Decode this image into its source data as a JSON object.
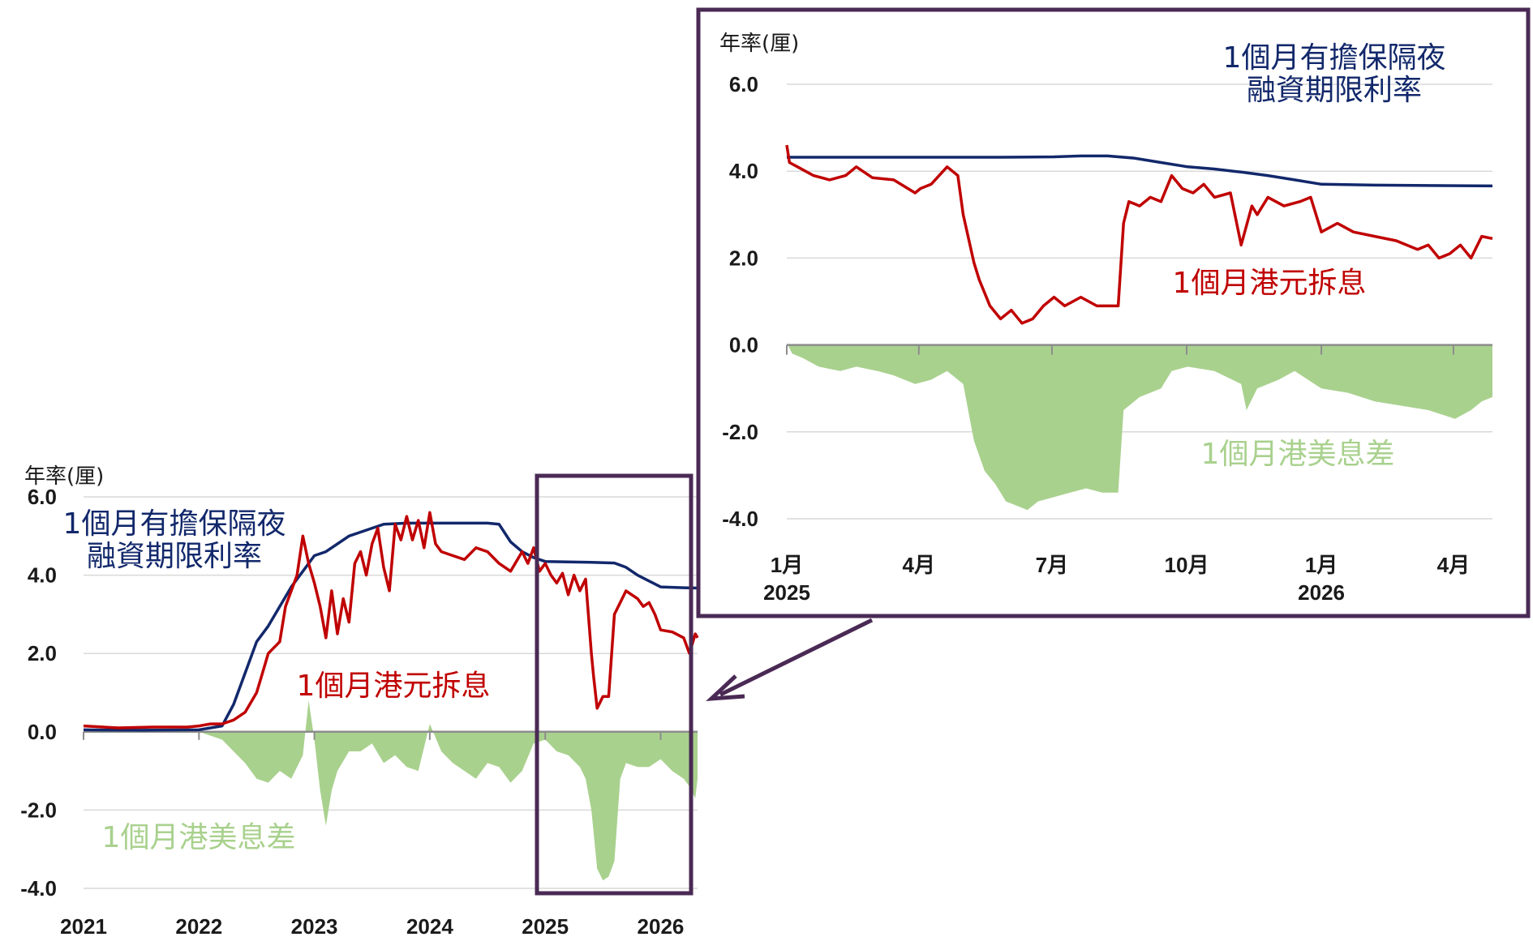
{
  "chart_data": [
    {
      "id": "main",
      "type": "line",
      "unit_label": "年率(厘)",
      "ylim": [
        -4.0,
        6.0
      ],
      "y_ticks": [
        "6.0",
        "4.0",
        "2.0",
        "0.0",
        "-2.0",
        "-4.0"
      ],
      "x_ticks": [
        "2021",
        "2022",
        "2023",
        "2024",
        "2025",
        "2026"
      ],
      "grid": true,
      "series": [
        {
          "name": "1個月有擔保隔夜融資期限利率",
          "label_lines": [
            "1個月有擔保隔夜",
            "融資期限利率"
          ],
          "color": "#12286b",
          "type": "line",
          "x": [
            2021.0,
            2021.5,
            2022.0,
            2022.2,
            2022.3,
            2022.4,
            2022.5,
            2022.6,
            2022.7,
            2022.8,
            2022.9,
            2023.0,
            2023.1,
            2023.2,
            2023.3,
            2023.4,
            2023.5,
            2023.6,
            2023.8,
            2024.0,
            2024.3,
            2024.5,
            2024.6,
            2024.7,
            2024.8,
            2024.9,
            2025.0,
            2025.4,
            2025.6,
            2025.7,
            2025.8,
            2025.9,
            2026.0,
            2026.2,
            2026.32
          ],
          "y": [
            0.05,
            0.04,
            0.05,
            0.15,
            0.7,
            1.5,
            2.3,
            2.7,
            3.2,
            3.7,
            4.1,
            4.5,
            4.6,
            4.8,
            5.0,
            5.1,
            5.2,
            5.3,
            5.33,
            5.33,
            5.33,
            5.33,
            5.3,
            4.85,
            4.6,
            4.45,
            4.35,
            4.33,
            4.31,
            4.2,
            4.0,
            3.85,
            3.7,
            3.68,
            3.67
          ]
        },
        {
          "name": "1個月港元拆息",
          "color": "#c00000",
          "type": "line",
          "x": [
            2021.0,
            2021.3,
            2021.6,
            2021.9,
            2022.0,
            2022.1,
            2022.2,
            2022.3,
            2022.4,
            2022.5,
            2022.55,
            2022.6,
            2022.7,
            2022.75,
            2022.85,
            2022.9,
            2022.95,
            2023.0,
            2023.05,
            2023.1,
            2023.15,
            2023.2,
            2023.25,
            2023.3,
            2023.35,
            2023.4,
            2023.45,
            2023.5,
            2023.55,
            2023.6,
            2023.65,
            2023.7,
            2023.75,
            2023.8,
            2023.85,
            2023.9,
            2023.95,
            2024.0,
            2024.05,
            2024.1,
            2024.2,
            2024.3,
            2024.4,
            2024.5,
            2024.6,
            2024.7,
            2024.8,
            2024.85,
            2024.9,
            2024.95,
            2025.0,
            2025.05,
            2025.1,
            2025.15,
            2025.2,
            2025.25,
            2025.3,
            2025.35,
            2025.4,
            2025.42,
            2025.45,
            2025.5,
            2025.55,
            2025.6,
            2025.65,
            2025.7,
            2025.75,
            2025.8,
            2025.85,
            2025.9,
            2025.95,
            2026.0,
            2026.1,
            2026.2,
            2026.25,
            2026.3,
            2026.32
          ],
          "y": [
            0.15,
            0.1,
            0.12,
            0.12,
            0.15,
            0.2,
            0.2,
            0.3,
            0.5,
            1.0,
            1.5,
            2.0,
            2.3,
            3.2,
            4.0,
            5.0,
            4.3,
            3.8,
            3.2,
            2.4,
            3.6,
            2.5,
            3.4,
            2.8,
            4.3,
            4.6,
            4.0,
            4.8,
            5.2,
            4.2,
            3.6,
            5.3,
            4.9,
            5.5,
            4.9,
            5.4,
            4.7,
            5.6,
            4.8,
            4.6,
            4.5,
            4.4,
            4.7,
            4.6,
            4.3,
            4.1,
            4.6,
            4.3,
            4.7,
            4.1,
            4.3,
            4.0,
            3.8,
            4.05,
            3.5,
            4.0,
            3.6,
            3.9,
            2.0,
            1.4,
            0.6,
            0.9,
            0.9,
            3.0,
            3.3,
            3.6,
            3.5,
            3.4,
            3.2,
            3.3,
            3.0,
            2.6,
            2.55,
            2.4,
            2.0,
            2.5,
            2.4
          ]
        },
        {
          "name": "1個月港美息差",
          "color": "#a9d18e",
          "type": "area",
          "x": [
            2021.0,
            2021.5,
            2022.0,
            2022.1,
            2022.2,
            2022.3,
            2022.4,
            2022.5,
            2022.6,
            2022.7,
            2022.8,
            2022.9,
            2022.95,
            2023.0,
            2023.05,
            2023.1,
            2023.15,
            2023.2,
            2023.3,
            2023.4,
            2023.5,
            2023.6,
            2023.7,
            2023.8,
            2023.9,
            2024.0,
            2024.1,
            2024.2,
            2024.3,
            2024.4,
            2024.5,
            2024.6,
            2024.7,
            2024.8,
            2024.9,
            2025.0,
            2025.1,
            2025.2,
            2025.3,
            2025.35,
            2025.4,
            2025.45,
            2025.5,
            2025.55,
            2025.6,
            2025.65,
            2025.7,
            2025.8,
            2025.9,
            2026.0,
            2026.1,
            2026.2,
            2026.25,
            2026.3,
            2026.32
          ],
          "y": [
            0.0,
            0.0,
            0.0,
            -0.1,
            -0.2,
            -0.5,
            -0.8,
            -1.2,
            -1.3,
            -1.0,
            -1.2,
            -0.6,
            0.8,
            -0.2,
            -1.5,
            -2.4,
            -1.5,
            -1.0,
            -0.5,
            -0.5,
            -0.3,
            -0.8,
            -0.6,
            -0.9,
            -1.0,
            0.2,
            -0.5,
            -0.8,
            -1.0,
            -1.2,
            -0.8,
            -0.9,
            -1.3,
            -1.0,
            -0.3,
            -0.2,
            -0.5,
            -0.6,
            -0.9,
            -1.2,
            -2.0,
            -3.5,
            -3.8,
            -3.7,
            -3.3,
            -1.2,
            -0.8,
            -0.9,
            -0.9,
            -0.7,
            -1.0,
            -1.2,
            -1.4,
            -1.7,
            -1.2
          ]
        }
      ]
    },
    {
      "id": "inset",
      "type": "line",
      "unit_label": "年率(厘)",
      "ylim": [
        -4.0,
        6.0
      ],
      "y_ticks": [
        "6.0",
        "4.0",
        "2.0",
        "0.0",
        "-2.0",
        "-4.0"
      ],
      "x_ticks": [
        {
          "label": "1月",
          "year": "2025",
          "x": 2025.0
        },
        {
          "label": "4月",
          "year": "",
          "x": 2025.247
        },
        {
          "label": "7月",
          "year": "",
          "x": 2025.496
        },
        {
          "label": "10月",
          "year": "",
          "x": 2025.748
        },
        {
          "label": "1月",
          "year": "2026",
          "x": 2026.0
        },
        {
          "label": "4月",
          "year": "",
          "x": 2026.247
        }
      ],
      "grid": true,
      "series": [
        {
          "name": "1個月有擔保隔夜融資期限利率",
          "label_lines": [
            "1個月有擔保隔夜",
            "融資期限利率"
          ],
          "color": "#12286b",
          "type": "line",
          "x": [
            2025.0,
            2025.1,
            2025.2,
            2025.3,
            2025.4,
            2025.5,
            2025.55,
            2025.6,
            2025.65,
            2025.7,
            2025.75,
            2025.8,
            2025.85,
            2025.9,
            2025.95,
            2026.0,
            2026.1,
            2026.2,
            2026.32
          ],
          "y": [
            4.32,
            4.32,
            4.32,
            4.32,
            4.32,
            4.33,
            4.35,
            4.35,
            4.3,
            4.2,
            4.1,
            4.05,
            3.98,
            3.9,
            3.8,
            3.7,
            3.68,
            3.67,
            3.66
          ]
        },
        {
          "name": "1個月港元拆息",
          "color": "#c00000",
          "type": "line",
          "x": [
            2025.0,
            2025.005,
            2025.02,
            2025.05,
            2025.08,
            2025.11,
            2025.13,
            2025.16,
            2025.2,
            2025.24,
            2025.25,
            2025.27,
            2025.3,
            2025.32,
            2025.33,
            2025.35,
            2025.36,
            2025.38,
            2025.4,
            2025.42,
            2025.44,
            2025.46,
            2025.48,
            2025.5,
            2025.52,
            2025.55,
            2025.58,
            2025.62,
            2025.63,
            2025.64,
            2025.66,
            2025.68,
            2025.7,
            2025.72,
            2025.74,
            2025.76,
            2025.78,
            2025.8,
            2025.83,
            2025.85,
            2025.87,
            2025.88,
            2025.9,
            2025.93,
            2025.96,
            2025.98,
            2026.0,
            2026.03,
            2026.06,
            2026.1,
            2026.14,
            2026.18,
            2026.2,
            2026.22,
            2026.24,
            2026.26,
            2026.28,
            2026.3,
            2026.32
          ],
          "y": [
            4.6,
            4.2,
            4.1,
            3.9,
            3.8,
            3.9,
            4.1,
            3.85,
            3.8,
            3.5,
            3.6,
            3.7,
            4.1,
            3.9,
            3.0,
            1.9,
            1.5,
            0.9,
            0.6,
            0.8,
            0.5,
            0.6,
            0.9,
            1.1,
            0.9,
            1.1,
            0.9,
            0.9,
            2.8,
            3.3,
            3.2,
            3.4,
            3.3,
            3.9,
            3.6,
            3.5,
            3.7,
            3.4,
            3.5,
            2.3,
            3.2,
            3.0,
            3.4,
            3.2,
            3.3,
            3.4,
            2.6,
            2.8,
            2.6,
            2.5,
            2.4,
            2.2,
            2.3,
            2.0,
            2.1,
            2.3,
            2.0,
            2.5,
            2.45
          ]
        },
        {
          "name": "1個月港美息差",
          "color": "#a9d18e",
          "type": "area",
          "x": [
            2025.0,
            2025.01,
            2025.03,
            2025.06,
            2025.1,
            2025.13,
            2025.17,
            2025.2,
            2025.24,
            2025.27,
            2025.3,
            2025.33,
            2025.35,
            2025.37,
            2025.39,
            2025.41,
            2025.43,
            2025.45,
            2025.47,
            2025.5,
            2025.53,
            2025.56,
            2025.59,
            2025.62,
            2025.63,
            2025.66,
            2025.7,
            2025.72,
            2025.75,
            2025.8,
            2025.85,
            2025.86,
            2025.88,
            2025.92,
            2025.95,
            2026.0,
            2026.05,
            2026.1,
            2026.15,
            2026.2,
            2026.25,
            2026.28,
            2026.3,
            2026.32
          ],
          "y": [
            0.05,
            -0.2,
            -0.3,
            -0.5,
            -0.6,
            -0.5,
            -0.6,
            -0.7,
            -0.9,
            -0.8,
            -0.6,
            -0.9,
            -2.2,
            -2.9,
            -3.2,
            -3.6,
            -3.7,
            -3.8,
            -3.6,
            -3.5,
            -3.4,
            -3.3,
            -3.4,
            -3.4,
            -1.5,
            -1.2,
            -1.0,
            -0.6,
            -0.5,
            -0.6,
            -0.9,
            -1.5,
            -1.0,
            -0.8,
            -0.6,
            -1.0,
            -1.1,
            -1.3,
            -1.4,
            -1.5,
            -1.7,
            -1.5,
            -1.3,
            -1.2
          ]
        }
      ]
    }
  ]
}
